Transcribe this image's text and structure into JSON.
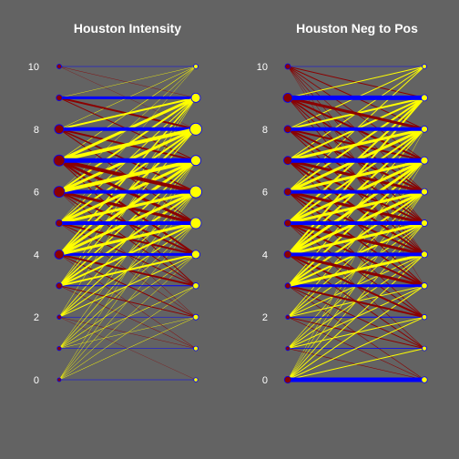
{
  "colors": {
    "background": "#636363",
    "same_level": "#0000ff",
    "increase": "#ffff00",
    "decrease": "#8b0000",
    "text": "#ffffff"
  },
  "chart_data": [
    {
      "type": "bipartite-transition",
      "title": "Houston Intensity",
      "y_ticks": [
        0,
        2,
        4,
        6,
        8,
        10
      ],
      "ylim": [
        0,
        10
      ],
      "levels": [
        0,
        1,
        2,
        3,
        4,
        5,
        6,
        7,
        8,
        9,
        10
      ],
      "left_marker_size": [
        0.8,
        0.9,
        0.9,
        1.3,
        2.0,
        1.5,
        2.4,
        2.4,
        2.0,
        1.3,
        1.0
      ],
      "right_marker_size": [
        0.9,
        1.0,
        1.2,
        1.3,
        1.8,
        2.4,
        2.6,
        2.2,
        2.6,
        2.0,
        1.0
      ],
      "links": [
        {
          "from": 10,
          "to": 10,
          "w": 0.5
        },
        {
          "from": 10,
          "to": 9,
          "w": 0.4
        },
        {
          "from": 10,
          "to": 8,
          "w": 0.3
        },
        {
          "from": 9,
          "to": 9,
          "w": 3
        },
        {
          "from": 9,
          "to": 10,
          "w": 0.4
        },
        {
          "from": 9,
          "to": 8,
          "w": 2
        },
        {
          "from": 9,
          "to": 7,
          "w": 1
        },
        {
          "from": 8,
          "to": 8,
          "w": 4
        },
        {
          "from": 8,
          "to": 9,
          "w": 2
        },
        {
          "from": 8,
          "to": 10,
          "w": 0.5
        },
        {
          "from": 8,
          "to": 7,
          "w": 2
        },
        {
          "from": 8,
          "to": 6,
          "w": 1.5
        },
        {
          "from": 8,
          "to": 5,
          "w": 1
        },
        {
          "from": 7,
          "to": 7,
          "w": 5
        },
        {
          "from": 7,
          "to": 8,
          "w": 4
        },
        {
          "from": 7,
          "to": 9,
          "w": 3
        },
        {
          "from": 7,
          "to": 10,
          "w": 0.6
        },
        {
          "from": 7,
          "to": 6,
          "w": 4
        },
        {
          "from": 7,
          "to": 5,
          "w": 3
        },
        {
          "from": 7,
          "to": 4,
          "w": 2
        },
        {
          "from": 7,
          "to": 3,
          "w": 1
        },
        {
          "from": 6,
          "to": 6,
          "w": 4
        },
        {
          "from": 6,
          "to": 7,
          "w": 4
        },
        {
          "from": 6,
          "to": 8,
          "w": 3
        },
        {
          "from": 6,
          "to": 9,
          "w": 2
        },
        {
          "from": 6,
          "to": 10,
          "w": 0.5
        },
        {
          "from": 6,
          "to": 5,
          "w": 3
        },
        {
          "from": 6,
          "to": 4,
          "w": 2
        },
        {
          "from": 6,
          "to": 3,
          "w": 1
        },
        {
          "from": 6,
          "to": 2,
          "w": 0.5
        },
        {
          "from": 5,
          "to": 5,
          "w": 4
        },
        {
          "from": 5,
          "to": 6,
          "w": 3
        },
        {
          "from": 5,
          "to": 7,
          "w": 3
        },
        {
          "from": 5,
          "to": 8,
          "w": 2
        },
        {
          "from": 5,
          "to": 9,
          "w": 1
        },
        {
          "from": 5,
          "to": 10,
          "w": 0.4
        },
        {
          "from": 5,
          "to": 4,
          "w": 2
        },
        {
          "from": 5,
          "to": 3,
          "w": 1
        },
        {
          "from": 5,
          "to": 2,
          "w": 0.5
        },
        {
          "from": 4,
          "to": 4,
          "w": 3
        },
        {
          "from": 4,
          "to": 5,
          "w": 3
        },
        {
          "from": 4,
          "to": 6,
          "w": 3
        },
        {
          "from": 4,
          "to": 7,
          "w": 3
        },
        {
          "from": 4,
          "to": 8,
          "w": 2
        },
        {
          "from": 4,
          "to": 9,
          "w": 1.5
        },
        {
          "from": 4,
          "to": 3,
          "w": 2
        },
        {
          "from": 4,
          "to": 2,
          "w": 1
        },
        {
          "from": 4,
          "to": 1,
          "w": 0.5
        },
        {
          "from": 3,
          "to": 3,
          "w": 1
        },
        {
          "from": 3,
          "to": 4,
          "w": 2
        },
        {
          "from": 3,
          "to": 5,
          "w": 2
        },
        {
          "from": 3,
          "to": 6,
          "w": 2
        },
        {
          "from": 3,
          "to": 7,
          "w": 1.5
        },
        {
          "from": 3,
          "to": 8,
          "w": 1
        },
        {
          "from": 3,
          "to": 9,
          "w": 0.6
        },
        {
          "from": 3,
          "to": 2,
          "w": 1
        },
        {
          "from": 3,
          "to": 1,
          "w": 0.5
        },
        {
          "from": 2,
          "to": 2,
          "w": 0.5
        },
        {
          "from": 2,
          "to": 4,
          "w": 1
        },
        {
          "from": 2,
          "to": 5,
          "w": 1
        },
        {
          "from": 2,
          "to": 6,
          "w": 1
        },
        {
          "from": 2,
          "to": 7,
          "w": 0.8
        },
        {
          "from": 2,
          "to": 9,
          "w": 0.5
        },
        {
          "from": 2,
          "to": 1,
          "w": 0.4
        },
        {
          "from": 2,
          "to": 0,
          "w": 0.3
        },
        {
          "from": 1,
          "to": 1,
          "w": 0.5
        },
        {
          "from": 1,
          "to": 3,
          "w": 0.6
        },
        {
          "from": 1,
          "to": 4,
          "w": 0.6
        },
        {
          "from": 1,
          "to": 5,
          "w": 0.6
        },
        {
          "from": 1,
          "to": 6,
          "w": 0.6
        },
        {
          "from": 1,
          "to": 7,
          "w": 0.5
        },
        {
          "from": 1,
          "to": 2,
          "w": 0.4
        },
        {
          "from": 0,
          "to": 0,
          "w": 0.5
        },
        {
          "from": 0,
          "to": 2,
          "w": 0.5
        },
        {
          "from": 0,
          "to": 3,
          "w": 0.5
        },
        {
          "from": 0,
          "to": 4,
          "w": 0.5
        },
        {
          "from": 0,
          "to": 5,
          "w": 0.5
        },
        {
          "from": 0,
          "to": 6,
          "w": 0.5
        },
        {
          "from": 0,
          "to": 7,
          "w": 0.4
        }
      ]
    },
    {
      "type": "bipartite-transition",
      "title": "Houston Neg to Pos",
      "y_ticks": [
        0,
        2,
        4,
        6,
        8,
        10
      ],
      "ylim": [
        0,
        10
      ],
      "levels": [
        0,
        1,
        2,
        3,
        4,
        5,
        6,
        7,
        8,
        9,
        10
      ],
      "left_marker_size": [
        1.5,
        0.9,
        0.9,
        1.2,
        1.6,
        1.5,
        1.6,
        1.8,
        1.6,
        2.0,
        1.2
      ],
      "right_marker_size": [
        1.3,
        1.0,
        1.1,
        1.3,
        1.4,
        1.4,
        1.4,
        1.6,
        1.4,
        1.4,
        1.0
      ],
      "links": [
        {
          "from": 10,
          "to": 10,
          "w": 0.6
        },
        {
          "from": 10,
          "to": 9,
          "w": 1
        },
        {
          "from": 10,
          "to": 8,
          "w": 1
        },
        {
          "from": 10,
          "to": 7,
          "w": 0.8
        },
        {
          "from": 10,
          "to": 6,
          "w": 0.6
        },
        {
          "from": 10,
          "to": 5,
          "w": 0.6
        },
        {
          "from": 10,
          "to": 4,
          "w": 0.5
        },
        {
          "from": 10,
          "to": 3,
          "w": 0.4
        },
        {
          "from": 9,
          "to": 9,
          "w": 5
        },
        {
          "from": 9,
          "to": 10,
          "w": 1
        },
        {
          "from": 9,
          "to": 8,
          "w": 3
        },
        {
          "from": 9,
          "to": 7,
          "w": 2
        },
        {
          "from": 9,
          "to": 6,
          "w": 1.5
        },
        {
          "from": 9,
          "to": 5,
          "w": 1
        },
        {
          "from": 9,
          "to": 4,
          "w": 0.8
        },
        {
          "from": 8,
          "to": 8,
          "w": 4
        },
        {
          "from": 8,
          "to": 9,
          "w": 2
        },
        {
          "from": 8,
          "to": 10,
          "w": 1
        },
        {
          "from": 8,
          "to": 7,
          "w": 2
        },
        {
          "from": 8,
          "to": 6,
          "w": 2
        },
        {
          "from": 8,
          "to": 5,
          "w": 1.5
        },
        {
          "from": 8,
          "to": 4,
          "w": 1
        },
        {
          "from": 7,
          "to": 7,
          "w": 5
        },
        {
          "from": 7,
          "to": 8,
          "w": 3
        },
        {
          "from": 7,
          "to": 9,
          "w": 2
        },
        {
          "from": 7,
          "to": 10,
          "w": 1
        },
        {
          "from": 7,
          "to": 6,
          "w": 3
        },
        {
          "from": 7,
          "to": 5,
          "w": 2
        },
        {
          "from": 7,
          "to": 4,
          "w": 2
        },
        {
          "from": 7,
          "to": 3,
          "w": 1
        },
        {
          "from": 6,
          "to": 6,
          "w": 4
        },
        {
          "from": 6,
          "to": 7,
          "w": 3
        },
        {
          "from": 6,
          "to": 8,
          "w": 3
        },
        {
          "from": 6,
          "to": 9,
          "w": 2
        },
        {
          "from": 6,
          "to": 10,
          "w": 1
        },
        {
          "from": 6,
          "to": 5,
          "w": 3
        },
        {
          "from": 6,
          "to": 4,
          "w": 2
        },
        {
          "from": 6,
          "to": 3,
          "w": 1.5
        },
        {
          "from": 6,
          "to": 2,
          "w": 0.8
        },
        {
          "from": 5,
          "to": 5,
          "w": 4
        },
        {
          "from": 5,
          "to": 6,
          "w": 3
        },
        {
          "from": 5,
          "to": 7,
          "w": 3
        },
        {
          "from": 5,
          "to": 8,
          "w": 2
        },
        {
          "from": 5,
          "to": 9,
          "w": 2
        },
        {
          "from": 5,
          "to": 4,
          "w": 3
        },
        {
          "from": 5,
          "to": 3,
          "w": 2
        },
        {
          "from": 5,
          "to": 2,
          "w": 1
        },
        {
          "from": 5,
          "to": 1,
          "w": 0.6
        },
        {
          "from": 4,
          "to": 4,
          "w": 4
        },
        {
          "from": 4,
          "to": 5,
          "w": 3
        },
        {
          "from": 4,
          "to": 6,
          "w": 3
        },
        {
          "from": 4,
          "to": 7,
          "w": 3
        },
        {
          "from": 4,
          "to": 8,
          "w": 2
        },
        {
          "from": 4,
          "to": 9,
          "w": 2
        },
        {
          "from": 4,
          "to": 3,
          "w": 3
        },
        {
          "from": 4,
          "to": 2,
          "w": 2
        },
        {
          "from": 4,
          "to": 1,
          "w": 1
        },
        {
          "from": 3,
          "to": 3,
          "w": 3
        },
        {
          "from": 3,
          "to": 4,
          "w": 3
        },
        {
          "from": 3,
          "to": 5,
          "w": 2
        },
        {
          "from": 3,
          "to": 6,
          "w": 2
        },
        {
          "from": 3,
          "to": 7,
          "w": 2
        },
        {
          "from": 3,
          "to": 8,
          "w": 1
        },
        {
          "from": 3,
          "to": 2,
          "w": 2
        },
        {
          "from": 3,
          "to": 1,
          "w": 1
        },
        {
          "from": 3,
          "to": 0,
          "w": 0.6
        },
        {
          "from": 2,
          "to": 2,
          "w": 1
        },
        {
          "from": 2,
          "to": 3,
          "w": 1
        },
        {
          "from": 2,
          "to": 4,
          "w": 1
        },
        {
          "from": 2,
          "to": 5,
          "w": 1
        },
        {
          "from": 2,
          "to": 6,
          "w": 1
        },
        {
          "from": 2,
          "to": 7,
          "w": 0.8
        },
        {
          "from": 2,
          "to": 1,
          "w": 1
        },
        {
          "from": 2,
          "to": 0,
          "w": 0.6
        },
        {
          "from": 1,
          "to": 1,
          "w": 0.8
        },
        {
          "from": 1,
          "to": 2,
          "w": 1
        },
        {
          "from": 1,
          "to": 3,
          "w": 1
        },
        {
          "from": 1,
          "to": 4,
          "w": 1
        },
        {
          "from": 1,
          "to": 5,
          "w": 0.8
        },
        {
          "from": 1,
          "to": 6,
          "w": 0.6
        },
        {
          "from": 1,
          "to": 0,
          "w": 0.6
        },
        {
          "from": 0,
          "to": 0,
          "w": 5
        },
        {
          "from": 0,
          "to": 1,
          "w": 1
        },
        {
          "from": 0,
          "to": 2,
          "w": 1
        },
        {
          "from": 0,
          "to": 3,
          "w": 1
        },
        {
          "from": 0,
          "to": 4,
          "w": 1
        },
        {
          "from": 0,
          "to": 5,
          "w": 0.8
        },
        {
          "from": 0,
          "to": 6,
          "w": 0.6
        },
        {
          "from": 0,
          "to": 7,
          "w": 0.5
        },
        {
          "from": 0,
          "to": 8,
          "w": 0.4
        }
      ]
    }
  ]
}
